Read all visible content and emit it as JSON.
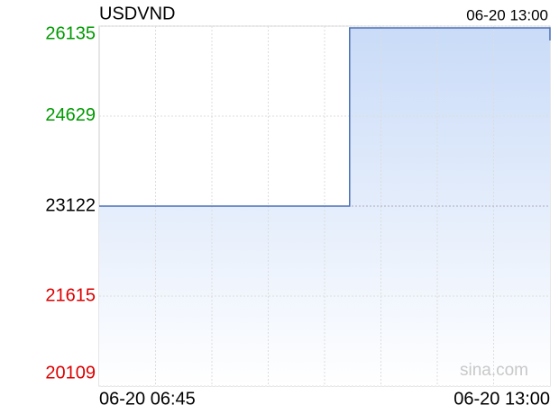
{
  "chart_data": {
    "type": "line",
    "title": "USDVND",
    "time": "06-20 13:00",
    "watermark": "sina.com",
    "step": true,
    "categories": [
      "06-20 06:45",
      null,
      null,
      null,
      null,
      null,
      null,
      null,
      null,
      null,
      null,
      null,
      null,
      null,
      null,
      null,
      null,
      null,
      "06-20 13:00"
    ],
    "series": [
      {
        "name": "USDVND",
        "color": "#4a6fb5",
        "values": [
          23122,
          23122,
          23122,
          23122,
          23122,
          23122,
          23122,
          23122,
          23122,
          23122,
          26105,
          26105,
          26105,
          26105,
          26105,
          26105,
          26105,
          26105,
          25894
        ]
      }
    ],
    "ylim": [
      20109,
      26135
    ],
    "yticks": [
      20109,
      21615,
      23122,
      24629,
      26135
    ],
    "ytick_colors": [
      "#dd0000",
      "#dd0000",
      "#000000",
      "#009900",
      "#009900"
    ],
    "fill_color": "#c9dbf8",
    "grid": true
  }
}
